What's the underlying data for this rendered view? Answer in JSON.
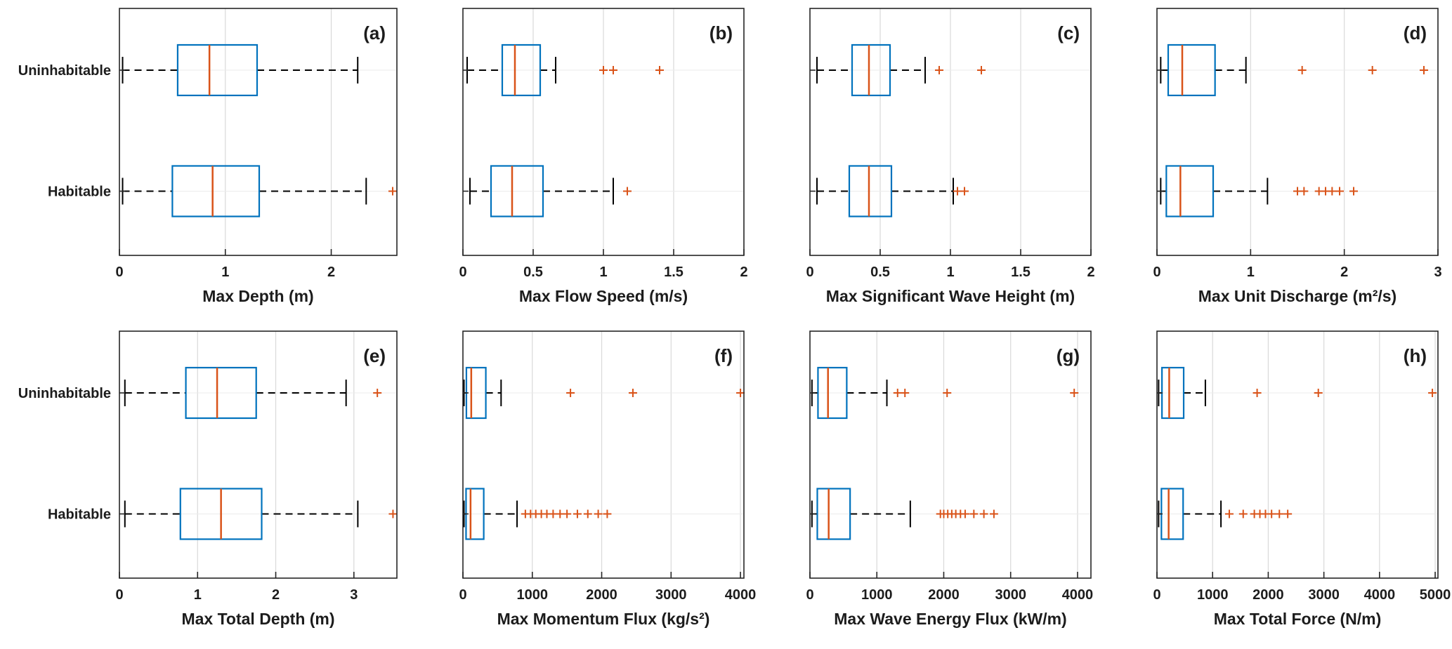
{
  "figure": {
    "categories": [
      "Uninhabitable",
      "Habitable"
    ],
    "colors": {
      "background": "#ffffff",
      "axis": "#262626",
      "grid": "#d9d9d9",
      "grid_h": "#ebebeb",
      "box": "#0072BD",
      "median": "#D95319",
      "whisker": "#000000",
      "outlier": "#D95319"
    }
  },
  "chart_data": [
    {
      "type": "boxplot",
      "orientation": "horizontal",
      "panel_label": "(a)",
      "xlabel": "Max Depth (m)",
      "xlim": [
        0,
        2.62
      ],
      "xticks": [
        0,
        1,
        2
      ],
      "xtick_labels": [
        "0",
        "1",
        "2"
      ],
      "show_category_labels": true,
      "groups": [
        {
          "category": "Uninhabitable",
          "whisker_low": 0.03,
          "q1": 0.55,
          "median": 0.85,
          "q3": 1.3,
          "whisker_high": 2.25,
          "outliers": []
        },
        {
          "category": "Habitable",
          "whisker_low": 0.03,
          "q1": 0.5,
          "median": 0.88,
          "q3": 1.32,
          "whisker_high": 2.33,
          "outliers": [
            2.58
          ]
        }
      ]
    },
    {
      "type": "boxplot",
      "orientation": "horizontal",
      "panel_label": "(b)",
      "xlabel": "Max Flow Speed (m/s)",
      "xlim": [
        0,
        2
      ],
      "xticks": [
        0,
        0.5,
        1,
        1.5,
        2
      ],
      "xtick_labels": [
        "0",
        "0.5",
        "1",
        "1.5",
        "2"
      ],
      "show_category_labels": false,
      "groups": [
        {
          "category": "Uninhabitable",
          "whisker_low": 0.03,
          "q1": 0.28,
          "median": 0.37,
          "q3": 0.55,
          "whisker_high": 0.66,
          "outliers": [
            1.0,
            1.07,
            1.4
          ]
        },
        {
          "category": "Habitable",
          "whisker_low": 0.05,
          "q1": 0.2,
          "median": 0.35,
          "q3": 0.57,
          "whisker_high": 1.07,
          "outliers": [
            1.17
          ]
        }
      ]
    },
    {
      "type": "boxplot",
      "orientation": "horizontal",
      "panel_label": "(c)",
      "xlabel": "Max Significant Wave Height (m)",
      "xlim": [
        0,
        2
      ],
      "xticks": [
        0,
        0.5,
        1,
        1.5,
        2
      ],
      "xtick_labels": [
        "0",
        "0.5",
        "1",
        "1.5",
        "2"
      ],
      "show_category_labels": false,
      "groups": [
        {
          "category": "Uninhabitable",
          "whisker_low": 0.05,
          "q1": 0.3,
          "median": 0.42,
          "q3": 0.57,
          "whisker_high": 0.82,
          "outliers": [
            0.92,
            1.22
          ]
        },
        {
          "category": "Habitable",
          "whisker_low": 0.05,
          "q1": 0.28,
          "median": 0.42,
          "q3": 0.58,
          "whisker_high": 1.02,
          "outliers": [
            1.05,
            1.1
          ]
        }
      ]
    },
    {
      "type": "boxplot",
      "orientation": "horizontal",
      "panel_label": "(d)",
      "xlabel": "Max Unit Discharge (m²/s)",
      "xlim": [
        0,
        3
      ],
      "xticks": [
        0,
        1,
        2,
        3
      ],
      "xtick_labels": [
        "0",
        "1",
        "2",
        "3"
      ],
      "show_category_labels": false,
      "groups": [
        {
          "category": "Uninhabitable",
          "whisker_low": 0.04,
          "q1": 0.12,
          "median": 0.27,
          "q3": 0.62,
          "whisker_high": 0.95,
          "outliers": [
            1.55,
            2.3,
            2.85
          ]
        },
        {
          "category": "Habitable",
          "whisker_low": 0.04,
          "q1": 0.1,
          "median": 0.25,
          "q3": 0.6,
          "whisker_high": 1.18,
          "outliers": [
            1.5,
            1.57,
            1.73,
            1.8,
            1.87,
            1.95,
            2.1
          ]
        }
      ]
    },
    {
      "type": "boxplot",
      "orientation": "horizontal",
      "panel_label": "(e)",
      "xlabel": "Max Total Depth (m)",
      "xlim": [
        0,
        3.55
      ],
      "xticks": [
        0,
        1,
        2,
        3
      ],
      "xtick_labels": [
        "0",
        "1",
        "2",
        "3"
      ],
      "show_category_labels": true,
      "groups": [
        {
          "category": "Uninhabitable",
          "whisker_low": 0.07,
          "q1": 0.85,
          "median": 1.25,
          "q3": 1.75,
          "whisker_high": 2.9,
          "outliers": [
            3.3
          ]
        },
        {
          "category": "Habitable",
          "whisker_low": 0.07,
          "q1": 0.78,
          "median": 1.3,
          "q3": 1.82,
          "whisker_high": 3.05,
          "outliers": [
            3.5
          ]
        }
      ]
    },
    {
      "type": "boxplot",
      "orientation": "horizontal",
      "panel_label": "(f)",
      "xlabel": "Max Momentum Flux (kg/s²)",
      "xlim": [
        0,
        4050
      ],
      "xticks": [
        0,
        1000,
        2000,
        3000,
        4000
      ],
      "xtick_labels": [
        "0",
        "1000",
        "2000",
        "3000",
        "4000"
      ],
      "show_category_labels": false,
      "groups": [
        {
          "category": "Uninhabitable",
          "whisker_low": 15,
          "q1": 50,
          "median": 120,
          "q3": 330,
          "whisker_high": 550,
          "outliers": [
            1550,
            2450,
            4000
          ]
        },
        {
          "category": "Habitable",
          "whisker_low": 15,
          "q1": 45,
          "median": 110,
          "q3": 300,
          "whisker_high": 780,
          "outliers": [
            900,
            975,
            1050,
            1130,
            1210,
            1300,
            1400,
            1500,
            1650,
            1800,
            1950,
            2080
          ]
        }
      ]
    },
    {
      "type": "boxplot",
      "orientation": "horizontal",
      "panel_label": "(g)",
      "xlabel": "Max Wave Energy Flux (kW/m)",
      "xlim": [
        0,
        4200
      ],
      "xticks": [
        0,
        1000,
        2000,
        3000,
        4000
      ],
      "xtick_labels": [
        "0",
        "1000",
        "2000",
        "3000",
        "4000"
      ],
      "show_category_labels": false,
      "groups": [
        {
          "category": "Uninhabitable",
          "whisker_low": 30,
          "q1": 120,
          "median": 270,
          "q3": 550,
          "whisker_high": 1150,
          "outliers": [
            1310,
            1420,
            2050,
            3950
          ]
        },
        {
          "category": "Habitable",
          "whisker_low": 30,
          "q1": 110,
          "median": 280,
          "q3": 600,
          "whisker_high": 1500,
          "outliers": [
            1950,
            2000,
            2060,
            2120,
            2180,
            2250,
            2320,
            2450,
            2600,
            2750
          ]
        }
      ]
    },
    {
      "type": "boxplot",
      "orientation": "horizontal",
      "panel_label": "(h)",
      "xlabel": "Max Total Force (N/m)",
      "xlim": [
        0,
        5050
      ],
      "xticks": [
        0,
        1000,
        2000,
        3000,
        4000,
        5000
      ],
      "xtick_labels": [
        "0",
        "1000",
        "2000",
        "3000",
        "4000",
        "5000"
      ],
      "show_category_labels": false,
      "groups": [
        {
          "category": "Uninhabitable",
          "whisker_low": 30,
          "q1": 90,
          "median": 220,
          "q3": 480,
          "whisker_high": 870,
          "outliers": [
            1800,
            2900,
            4950
          ]
        },
        {
          "category": "Habitable",
          "whisker_low": 30,
          "q1": 80,
          "median": 210,
          "q3": 470,
          "whisker_high": 1150,
          "outliers": [
            1300,
            1550,
            1750,
            1850,
            1950,
            2060,
            2200,
            2350
          ]
        }
      ]
    }
  ]
}
